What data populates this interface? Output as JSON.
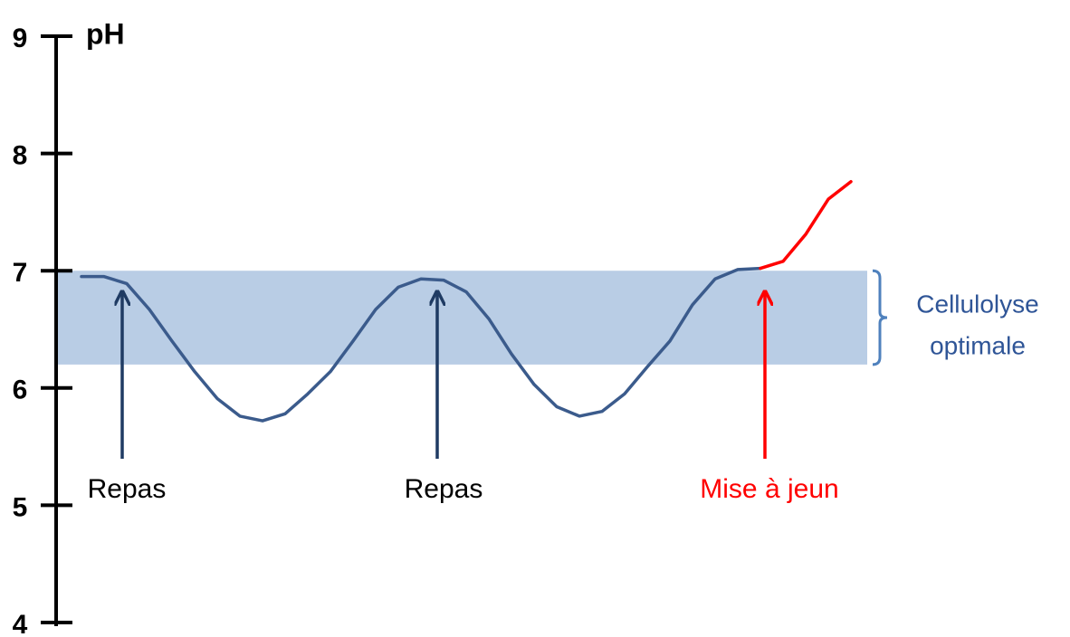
{
  "chart_data": {
    "type": "line",
    "ylabel": "pH",
    "ylim": [
      4,
      9
    ],
    "yticks": [
      4,
      5,
      6,
      7,
      8,
      9
    ],
    "categories": [
      null,
      null,
      null,
      null,
      null,
      null,
      null,
      null,
      null,
      null,
      null,
      null,
      null,
      null,
      null,
      null,
      null,
      null,
      null,
      null,
      null,
      null,
      null,
      null,
      null,
      null,
      null,
      null,
      null,
      null,
      null,
      null,
      null,
      null,
      null
    ],
    "series": [
      {
        "color": "#3b5b8c",
        "values": [
          6.95,
          6.95,
          6.89,
          6.67,
          6.4,
          6.14,
          5.91,
          5.76,
          5.72,
          5.78,
          5.95,
          6.14,
          6.4,
          6.67,
          6.86,
          6.93,
          6.92,
          6.82,
          6.59,
          6.29,
          6.03,
          5.84,
          5.76,
          5.8,
          5.95,
          6.18,
          6.4,
          6.71,
          6.93,
          7.01,
          7.02,
          null,
          null,
          null,
          null
        ]
      },
      {
        "color": "#ff0000",
        "values": [
          null,
          null,
          null,
          null,
          null,
          null,
          null,
          null,
          null,
          null,
          null,
          null,
          null,
          null,
          null,
          null,
          null,
          null,
          null,
          null,
          null,
          null,
          null,
          null,
          null,
          null,
          null,
          null,
          null,
          null,
          7.02,
          7.08,
          7.31,
          7.61,
          7.76
        ]
      }
    ],
    "band": {
      "range": [
        6.2,
        7
      ],
      "color": "#b9cde5",
      "label": [
        "Cellulolyse",
        "optimale"
      ]
    },
    "annotations": [
      {
        "text": "Repas",
        "color": "#1f3b63"
      },
      {
        "text": "Repas",
        "color": "#1f3b63"
      },
      {
        "text": "Mise à jeun",
        "color": "#ff0000"
      }
    ]
  }
}
